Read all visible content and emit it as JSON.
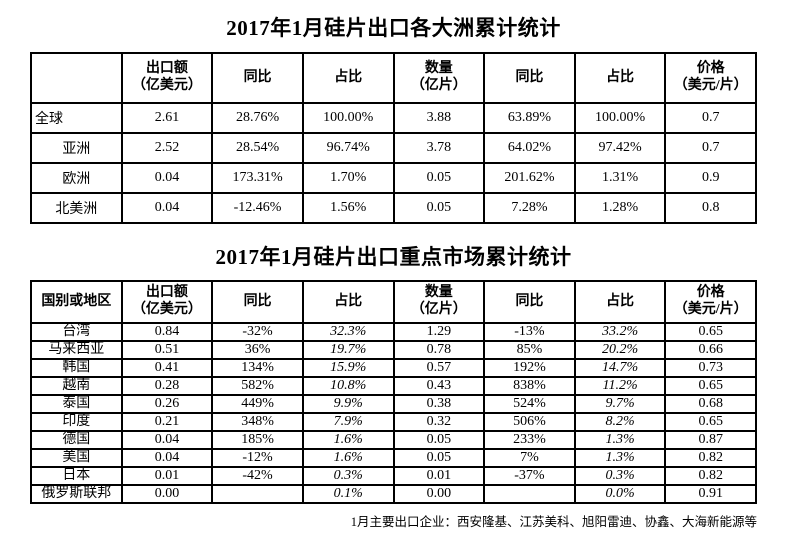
{
  "table1": {
    "title": "2017年1月硅片出口各大洲累计统计",
    "headers": [
      "",
      "出口额\n（亿美元）",
      "同比",
      "占比",
      "数量\n（亿片）",
      "同比",
      "占比",
      "价格\n（美元/片）"
    ],
    "rows": [
      [
        "全球",
        "2.61",
        "28.76%",
        "100.00%",
        "3.88",
        "63.89%",
        "100.00%",
        "0.7"
      ],
      [
        "亚洲",
        "2.52",
        "28.54%",
        "96.74%",
        "3.78",
        "64.02%",
        "97.42%",
        "0.7"
      ],
      [
        "欧洲",
        "0.04",
        "173.31%",
        "1.70%",
        "0.05",
        "201.62%",
        "1.31%",
        "0.9"
      ],
      [
        "北美洲",
        "0.04",
        "-12.46%",
        "1.56%",
        "0.05",
        "7.28%",
        "1.28%",
        "0.8"
      ]
    ]
  },
  "table2": {
    "title": "2017年1月硅片出口重点市场累计统计",
    "headers": [
      "国别或地区",
      "出口额\n（亿美元）",
      "同比",
      "占比",
      "数量\n（亿片）",
      "同比",
      "占比",
      "价格\n（美元/片）"
    ],
    "rows": [
      [
        "台湾",
        "0.84",
        "-32%",
        "32.3%",
        "1.29",
        "-13%",
        "33.2%",
        "0.65"
      ],
      [
        "马来西亚",
        "0.51",
        "36%",
        "19.7%",
        "0.78",
        "85%",
        "20.2%",
        "0.66"
      ],
      [
        "韩国",
        "0.41",
        "134%",
        "15.9%",
        "0.57",
        "192%",
        "14.7%",
        "0.73"
      ],
      [
        "越南",
        "0.28",
        "582%",
        "10.8%",
        "0.43",
        "838%",
        "11.2%",
        "0.65"
      ],
      [
        "泰国",
        "0.26",
        "449%",
        "9.9%",
        "0.38",
        "524%",
        "9.7%",
        "0.68"
      ],
      [
        "印度",
        "0.21",
        "348%",
        "7.9%",
        "0.32",
        "506%",
        "8.2%",
        "0.65"
      ],
      [
        "德国",
        "0.04",
        "185%",
        "1.6%",
        "0.05",
        "233%",
        "1.3%",
        "0.87"
      ],
      [
        "美国",
        "0.04",
        "-12%",
        "1.6%",
        "0.05",
        "7%",
        "1.3%",
        "0.82"
      ],
      [
        "日本",
        "0.01",
        "-42%",
        "0.3%",
        "0.01",
        "-37%",
        "0.3%",
        "0.82"
      ],
      [
        "俄罗斯联邦",
        "0.00",
        "",
        "0.1%",
        "0.00",
        "",
        "0.0%",
        "0.91"
      ]
    ]
  },
  "footer": "1月主要出口企业：西安隆基、江苏美科、旭阳雷迪、协鑫、大海新能源等"
}
